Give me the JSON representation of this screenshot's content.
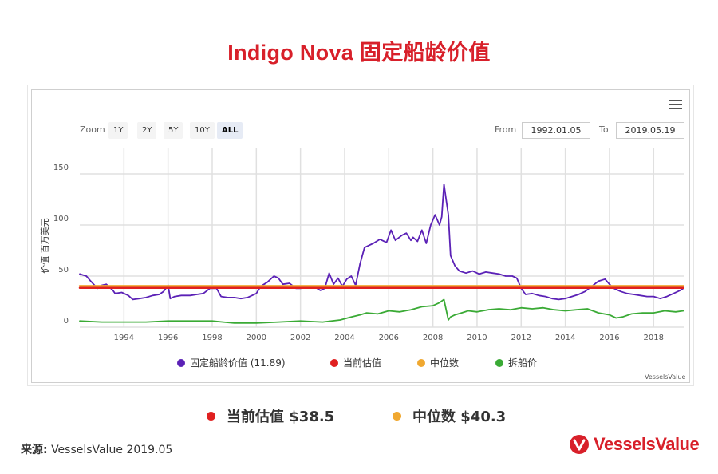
{
  "title": "Indigo Nova 固定船龄价值",
  "toolbar": {
    "zoom_label": "Zoom",
    "zoom_buttons": [
      "1Y",
      "2Y",
      "5Y",
      "10Y",
      "ALL"
    ],
    "active_zoom": "ALL",
    "from_label": "From",
    "from_value": "1992.01.05",
    "to_label": "To",
    "to_value": "2019.05.19",
    "menu_icon": "hamburger-menu-icon"
  },
  "legend": {
    "items": [
      {
        "label": "固定船龄价值 (11.89)",
        "color": "#5b21b6"
      },
      {
        "label": "当前估值",
        "color": "#e02020"
      },
      {
        "label": "中位数",
        "color": "#f0a830"
      },
      {
        "label": "拆船价",
        "color": "#3aaa35"
      }
    ],
    "credit": "VesselsValue"
  },
  "summary": {
    "current_label": "当前估值 $38.5",
    "current_color": "#e02020",
    "median_label": "中位数 $40.3",
    "median_color": "#f0a830"
  },
  "footer": {
    "source_prefix": "来源:",
    "source_text": "VesselsValue 2019.05",
    "logo_text": "VesselsValue"
  },
  "chart_data": {
    "type": "line",
    "ylabel": "价值 百万美元",
    "ylim": [
      0,
      175
    ],
    "xlim": [
      1992.0,
      2019.4
    ],
    "yticks": [
      0,
      50,
      100,
      150
    ],
    "xticks": [
      1994,
      1996,
      1998,
      2000,
      2002,
      2004,
      2006,
      2008,
      2010,
      2012,
      2014,
      2016,
      2018
    ],
    "grid": true,
    "series": [
      {
        "name": "固定船龄价值 (11.89)",
        "color": "#5b21b6",
        "x": [
          1992.0,
          1992.3,
          1992.5,
          1992.8,
          1993.0,
          1993.2,
          1993.5,
          1993.6,
          1993.9,
          1994.2,
          1994.4,
          1994.7,
          1995.0,
          1995.3,
          1995.6,
          1995.8,
          1996.0,
          1996.1,
          1996.3,
          1996.6,
          1997.0,
          1997.3,
          1997.6,
          1997.9,
          1998.2,
          1998.4,
          1998.7,
          1999.0,
          1999.3,
          1999.6,
          2000.0,
          2000.2,
          2000.5,
          2000.8,
          2001.0,
          2001.2,
          2001.5,
          2001.8,
          2002.0,
          2002.3,
          2002.6,
          2002.9,
          2003.1,
          2003.3,
          2003.5,
          2003.7,
          2003.9,
          2004.1,
          2004.3,
          2004.5,
          2004.7,
          2004.9,
          2005.1,
          2005.3,
          2005.6,
          2005.9,
          2006.1,
          2006.3,
          2006.6,
          2006.8,
          2007.0,
          2007.1,
          2007.3,
          2007.5,
          2007.7,
          2007.9,
          2008.1,
          2008.3,
          2008.4,
          2008.5,
          2008.6,
          2008.7,
          2008.8,
          2009.0,
          2009.2,
          2009.5,
          2009.8,
          2010.1,
          2010.4,
          2010.7,
          2011.0,
          2011.3,
          2011.6,
          2011.8,
          2012.0,
          2012.2,
          2012.5,
          2012.8,
          2013.1,
          2013.4,
          2013.7,
          2014.0,
          2014.3,
          2014.6,
          2014.9,
          2015.2,
          2015.5,
          2015.8,
          2016.0,
          2016.2,
          2016.5,
          2016.8,
          2017.1,
          2017.4,
          2017.7,
          2018.0,
          2018.3,
          2018.6,
          2018.9,
          2019.2,
          2019.35
        ],
        "values": [
          52,
          50,
          45,
          38,
          41,
          42,
          36,
          33,
          34,
          31,
          27,
          28,
          29,
          31,
          32,
          35,
          41,
          28,
          30,
          31,
          31,
          32,
          33,
          38,
          38,
          30,
          29,
          29,
          28,
          29,
          33,
          40,
          44,
          50,
          48,
          42,
          43,
          38,
          38,
          39,
          40,
          36,
          38,
          53,
          42,
          48,
          40,
          47,
          50,
          41,
          62,
          78,
          80,
          82,
          86,
          83,
          95,
          85,
          90,
          92,
          85,
          88,
          84,
          95,
          82,
          100,
          110,
          100,
          108,
          140,
          125,
          110,
          70,
          60,
          55,
          53,
          55,
          52,
          54,
          53,
          52,
          50,
          50,
          48,
          38,
          32,
          33,
          31,
          30,
          28,
          27,
          28,
          30,
          32,
          35,
          40,
          45,
          47,
          42,
          38,
          35,
          33,
          32,
          31,
          30,
          30,
          28,
          30,
          33,
          36,
          38
        ]
      },
      {
        "name": "当前估值",
        "color": "#e02020",
        "x": [
          1992.0,
          2019.35
        ],
        "values": [
          38.5,
          38.5
        ]
      },
      {
        "name": "中位数",
        "color": "#f0a830",
        "x": [
          1992.0,
          2019.35
        ],
        "values": [
          40.3,
          40.3
        ]
      },
      {
        "name": "拆船价",
        "color": "#3aaa35",
        "x": [
          1992.0,
          1993.0,
          1994.0,
          1995.0,
          1996.0,
          1997.0,
          1998.0,
          1998.5,
          1999.0,
          2000.0,
          2001.0,
          2002.0,
          2003.0,
          2003.8,
          2004.3,
          2004.7,
          2005.0,
          2005.5,
          2006.0,
          2006.5,
          2007.0,
          2007.5,
          2008.0,
          2008.3,
          2008.5,
          2008.7,
          2008.8,
          2009.0,
          2009.3,
          2009.6,
          2010.0,
          2010.5,
          2011.0,
          2011.5,
          2012.0,
          2012.5,
          2013.0,
          2013.5,
          2014.0,
          2014.5,
          2015.0,
          2015.5,
          2016.0,
          2016.3,
          2016.6,
          2017.0,
          2017.5,
          2018.0,
          2018.5,
          2019.0,
          2019.35
        ],
        "values": [
          6,
          5,
          5,
          5,
          6,
          6,
          6,
          5,
          4,
          4,
          5,
          6,
          5,
          7,
          10,
          12,
          14,
          13,
          16,
          15,
          17,
          20,
          21,
          24,
          27,
          7,
          10,
          12,
          14,
          16,
          15,
          17,
          18,
          17,
          19,
          18,
          19,
          17,
          16,
          17,
          18,
          14,
          12,
          9,
          10,
          13,
          14,
          14,
          16,
          15,
          16
        ]
      }
    ]
  }
}
